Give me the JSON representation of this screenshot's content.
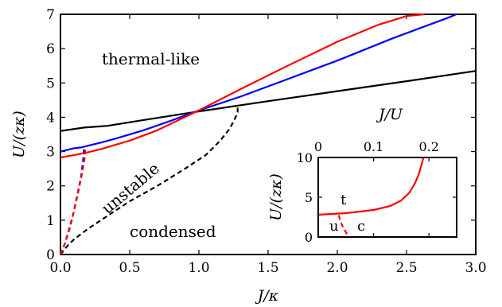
{
  "chart_data": [
    {
      "type": "line",
      "xlabel": "J/κ",
      "ylabel": "U/(zκ)",
      "xlim": [
        0,
        3
      ],
      "ylim": [
        0,
        7
      ],
      "x_ticks": [
        "0.0",
        "0.5",
        "1.0",
        "1.5",
        "2.0",
        "2.5",
        "3.0"
      ],
      "y_ticks": [
        "0",
        "1",
        "2",
        "3",
        "4",
        "5",
        "6",
        "7"
      ],
      "annotations": [
        "thermal-like",
        "unstable",
        "condensed"
      ],
      "series": [
        {
          "color": "#000000",
          "style": "solid",
          "x": [
            0.0,
            0.17,
            0.34,
            0.6,
            1.0,
            1.5,
            2.0,
            2.5,
            3.0
          ],
          "y": [
            3.6,
            3.7,
            3.75,
            3.92,
            4.17,
            4.47,
            4.76,
            5.05,
            5.35
          ]
        },
        {
          "color": "#0000ff",
          "style": "solid",
          "x": [
            0.0,
            0.05,
            0.1,
            0.15,
            0.2,
            0.3,
            0.4,
            0.6,
            0.8,
            1.0,
            1.3,
            1.6,
            2.0,
            2.4,
            2.8,
            2.86
          ],
          "y": [
            3.0,
            3.05,
            3.1,
            3.12,
            3.17,
            3.27,
            3.38,
            3.62,
            3.9,
            4.2,
            4.6,
            5.05,
            5.65,
            6.3,
            6.9,
            7.0
          ]
        },
        {
          "color": "#ff0000",
          "style": "solid",
          "x": [
            0.0,
            0.1,
            0.2,
            0.3,
            0.5,
            0.7,
            1.0,
            1.3,
            1.6,
            2.0,
            2.3,
            2.5,
            2.63
          ],
          "y": [
            2.83,
            2.9,
            2.98,
            3.08,
            3.32,
            3.62,
            4.2,
            4.82,
            5.42,
            6.2,
            6.7,
            6.95,
            7.0
          ]
        },
        {
          "color": "#000000",
          "style": "dashed",
          "x": [
            0.0,
            0.05,
            0.1,
            0.2,
            0.3,
            0.5,
            0.7,
            0.9,
            1.05,
            1.15,
            1.22,
            1.26,
            1.28,
            1.28
          ],
          "y": [
            0.0,
            0.25,
            0.45,
            0.75,
            1.02,
            1.55,
            2.0,
            2.5,
            2.9,
            3.3,
            3.65,
            3.95,
            4.15,
            4.3
          ]
        },
        {
          "color": "#0000ff",
          "style": "dashed",
          "x": [
            0.0,
            0.03,
            0.06,
            0.09,
            0.12,
            0.15,
            0.165,
            0.17
          ],
          "y": [
            0.0,
            0.3,
            0.7,
            1.15,
            1.7,
            2.3,
            2.8,
            3.1
          ]
        },
        {
          "color": "#ff0000",
          "style": "dashed",
          "x": [
            0.0,
            0.035,
            0.07,
            0.1,
            0.13,
            0.16,
            0.175,
            0.18
          ],
          "y": [
            0.0,
            0.35,
            0.8,
            1.3,
            1.85,
            2.45,
            2.8,
            3.05
          ]
        }
      ]
    },
    {
      "type": "line",
      "inset": true,
      "xlabel": "J/U",
      "ylabel": "U/(zκ)",
      "xlim": [
        0,
        0.25
      ],
      "ylim": [
        0,
        10
      ],
      "x_ticks": [
        "0",
        "0.1",
        "0.2"
      ],
      "y_ticks": [
        "0",
        "5",
        "10"
      ],
      "annotations": [
        "t",
        "u",
        "c"
      ],
      "series": [
        {
          "color": "#ff0000",
          "style": "solid",
          "x": [
            0.0,
            0.05,
            0.1,
            0.13,
            0.15,
            0.165,
            0.175,
            0.182,
            0.187,
            0.19
          ],
          "y": [
            2.8,
            3.0,
            3.4,
            3.9,
            4.6,
            5.6,
            6.8,
            8.0,
            9.2,
            10.0
          ]
        },
        {
          "color": "#ff0000",
          "style": "dashed",
          "x": [
            0.037,
            0.04,
            0.045,
            0.05,
            0.055
          ],
          "y": [
            2.75,
            2.0,
            1.2,
            0.6,
            0.0
          ]
        }
      ]
    }
  ]
}
